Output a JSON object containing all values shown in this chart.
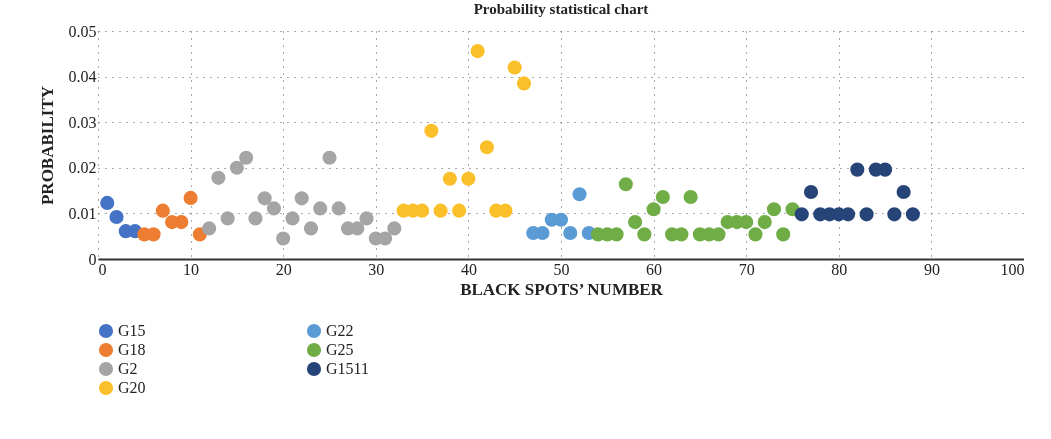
{
  "chart_data": {
    "type": "scatter",
    "title": "Probability statistical chart",
    "xlabel": "BLACK SPOTS’ NUMBER",
    "ylabel": "PROBABILITY",
    "xlim": [
      0,
      100
    ],
    "xticks": [
      0,
      10,
      20,
      30,
      40,
      50,
      60,
      70,
      80,
      90,
      100
    ],
    "ylim": [
      0,
      0.05
    ],
    "yticks": [
      0,
      0.01,
      0.02,
      0.03,
      0.04,
      0.05
    ],
    "grid": true,
    "legend": "bottom left",
    "marker": "circle",
    "series": [
      {
        "name": "G15",
        "color": "#4472c4",
        "x": [
          1,
          2,
          3,
          4
        ],
        "values": [
          0.0123,
          0.0092,
          0.0061,
          0.0061
        ]
      },
      {
        "name": "G18",
        "color": "#ed7d31",
        "x": [
          5,
          6,
          7,
          8,
          9,
          10,
          11
        ],
        "values": [
          0.0054,
          0.0054,
          0.0106,
          0.0081,
          0.0081,
          0.0134,
          0.0054
        ]
      },
      {
        "name": "G2",
        "color": "#a5a5a5",
        "x": [
          12,
          13,
          14,
          15,
          16,
          17,
          18,
          19,
          20,
          21,
          22,
          23,
          24,
          25,
          26,
          27,
          28,
          29,
          30,
          31,
          32
        ],
        "values": [
          0.0067,
          0.0178,
          0.0089,
          0.02,
          0.0222,
          0.0089,
          0.0133,
          0.0111,
          0.0045,
          0.0089,
          0.0133,
          0.0067,
          0.0111,
          0.0222,
          0.0111,
          0.0067,
          0.0067,
          0.0089,
          0.0045,
          0.0045,
          0.0067
        ]
      },
      {
        "name": "G20",
        "color": "#fbbf2a",
        "x": [
          33,
          34,
          35,
          36,
          37,
          38,
          39,
          40,
          41,
          42,
          43,
          44,
          45,
          46
        ],
        "values": [
          0.0106,
          0.0106,
          0.0106,
          0.0281,
          0.0106,
          0.0176,
          0.0106,
          0.0176,
          0.0456,
          0.0245,
          0.0106,
          0.0106,
          0.042,
          0.0385
        ]
      },
      {
        "name": "G22",
        "color": "#5b9bd5",
        "x": [
          47,
          48,
          49,
          50,
          51,
          52,
          53
        ],
        "values": [
          0.0057,
          0.0057,
          0.0086,
          0.0086,
          0.0057,
          0.0142,
          0.0057
        ]
      },
      {
        "name": "G25",
        "color": "#70ad47",
        "x": [
          54,
          55,
          56,
          57,
          58,
          59,
          60,
          61,
          62,
          63,
          64,
          65,
          66,
          67,
          68,
          69,
          70,
          71,
          72,
          73,
          74,
          75
        ],
        "values": [
          0.0054,
          0.0054,
          0.0054,
          0.0164,
          0.0081,
          0.0054,
          0.0109,
          0.0136,
          0.0054,
          0.0054,
          0.0136,
          0.0054,
          0.0054,
          0.0054,
          0.0081,
          0.0081,
          0.0081,
          0.0054,
          0.0081,
          0.0109,
          0.0054,
          0.0109
        ]
      },
      {
        "name": "G1511",
        "color": "#264478",
        "x": [
          76,
          77,
          78,
          79,
          80,
          81,
          82,
          83,
          84,
          85,
          86,
          87,
          88
        ],
        "values": [
          0.0098,
          0.0147,
          0.0098,
          0.0098,
          0.0098,
          0.0098,
          0.0196,
          0.0098,
          0.0196,
          0.0196,
          0.0098,
          0.0147,
          0.0098
        ]
      }
    ]
  }
}
